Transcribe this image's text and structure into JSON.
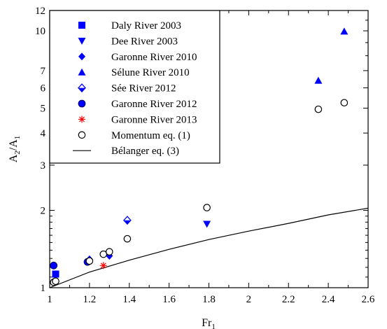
{
  "chart_data": {
    "type": "scatter",
    "title": "",
    "xlabel": "Fr",
    "xlabel_sub": "1",
    "ylabel_a": "A",
    "ylabel_sub2": "2",
    "ylabel_slash": "/A",
    "ylabel_sub1": "1",
    "x_scale": "linear",
    "y_scale": "log",
    "xlim": [
      1.0,
      2.6
    ],
    "ylim": [
      1.0,
      12.0
    ],
    "x_ticks": [
      1.0,
      1.2,
      1.4,
      1.6,
      1.8,
      2.0,
      2.2,
      2.4,
      2.6
    ],
    "x_tick_labels": [
      "1",
      "1.2",
      "1.4",
      "1.6",
      "1.8",
      "2",
      "2.2",
      "2.4",
      "2.6"
    ],
    "y_ticks": [
      1,
      2,
      3,
      4,
      5,
      6,
      7,
      10,
      12
    ],
    "y_tick_labels": [
      "1",
      "2",
      "3",
      "4",
      "5",
      "6",
      "7",
      "10",
      "12"
    ],
    "grid": false,
    "legend_position": "top-left",
    "colors": {
      "blue": "#0000ff",
      "red": "#ff0000",
      "black": "#000000"
    },
    "series": [
      {
        "name": "Daly River 2003",
        "marker": "square",
        "color": "#0000ff",
        "points": [
          [
            1.03,
            1.13
          ]
        ]
      },
      {
        "name": "Dee River 2003",
        "marker": "triangle-down",
        "color": "#0000ff",
        "points": [
          [
            1.79,
            1.77
          ]
        ]
      },
      {
        "name": "Garonne River 2010",
        "marker": "diamond",
        "color": "#0000ff",
        "points": [
          [
            1.2,
            1.29
          ],
          [
            1.3,
            1.33
          ]
        ]
      },
      {
        "name": "Sélune River 2010",
        "marker": "triangle-up",
        "color": "#0000ff",
        "points": [
          [
            2.35,
            6.4
          ],
          [
            2.48,
            9.95
          ]
        ]
      },
      {
        "name": "Sée River 2012",
        "marker": "diamond-half",
        "color": "#0000ff",
        "points": [
          [
            1.39,
            1.83
          ]
        ]
      },
      {
        "name": "Garonne River 2012",
        "marker": "circle-filled",
        "color": "#0000ff",
        "points": [
          [
            1.02,
            1.22
          ],
          [
            1.19,
            1.26
          ]
        ]
      },
      {
        "name": "Garonne River 2013",
        "marker": "asterisk",
        "color": "#ff0000",
        "points": [
          [
            1.27,
            1.22
          ]
        ]
      },
      {
        "name": "Momentum eq. (1)",
        "marker": "circle-open",
        "color": "#000000",
        "points": [
          [
            1.02,
            1.05
          ],
          [
            1.03,
            1.06
          ],
          [
            1.2,
            1.27
          ],
          [
            1.27,
            1.35
          ],
          [
            1.3,
            1.38
          ],
          [
            1.39,
            1.55
          ],
          [
            1.79,
            2.05
          ],
          [
            2.35,
            4.95
          ],
          [
            2.48,
            5.25
          ]
        ]
      },
      {
        "name": "Bélanger eq. (3)",
        "marker": "line",
        "color": "#000000",
        "points": [
          [
            1.0,
            1.0
          ],
          [
            1.2,
            1.15
          ],
          [
            1.4,
            1.28
          ],
          [
            1.6,
            1.41
          ],
          [
            1.8,
            1.54
          ],
          [
            2.0,
            1.66
          ],
          [
            2.2,
            1.78
          ],
          [
            2.4,
            1.92
          ],
          [
            2.6,
            2.04
          ]
        ]
      }
    ]
  }
}
